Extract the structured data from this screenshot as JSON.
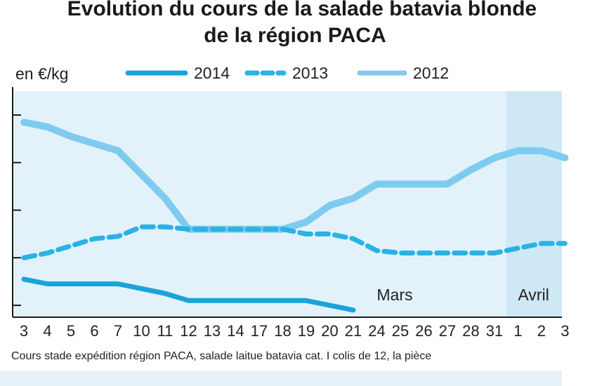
{
  "chart_data": {
    "type": "line",
    "title": "Evolution du cours de la salade batavia blonde",
    "subtitle": "de la région PACA",
    "ylabel": "en €/kg",
    "xlabel": "",
    "categories": [
      "3",
      "4",
      "5",
      "6",
      "7",
      "10",
      "11",
      "12",
      "13",
      "14",
      "17",
      "18",
      "19",
      "20",
      "21",
      "24",
      "25",
      "26",
      "27",
      "28",
      "31",
      "1",
      "2",
      "3"
    ],
    "months": [
      {
        "label": "Mars",
        "index": 15
      },
      {
        "label": "Avril",
        "index": 21
      }
    ],
    "ylim": [
      0.35,
      1.3
    ],
    "grid": false,
    "legend_position": "top",
    "series": [
      {
        "name": "2014",
        "style": "solid",
        "color": "#1aa3dc",
        "values": [
          0.51,
          0.49,
          0.49,
          0.49,
          0.49,
          0.47,
          0.45,
          0.42,
          0.42,
          0.42,
          0.42,
          0.42,
          0.42,
          0.4,
          0.38,
          null,
          null,
          null,
          null,
          null,
          null,
          null,
          null,
          null
        ]
      },
      {
        "name": "2013",
        "style": "dashed",
        "color": "#2ab2e6",
        "values": [
          0.6,
          0.62,
          0.65,
          0.68,
          0.69,
          0.73,
          0.73,
          0.72,
          0.72,
          0.72,
          0.72,
          0.72,
          0.7,
          0.7,
          0.68,
          0.63,
          0.62,
          0.62,
          0.62,
          0.62,
          0.62,
          0.64,
          0.66,
          0.66
        ]
      },
      {
        "name": "2012",
        "style": "solid",
        "color": "#7ecbef",
        "values": [
          1.17,
          1.15,
          1.11,
          1.08,
          1.05,
          0.95,
          0.85,
          0.72,
          0.72,
          0.72,
          0.72,
          0.72,
          0.75,
          0.82,
          0.85,
          0.91,
          0.91,
          0.91,
          0.91,
          0.97,
          1.02,
          1.05,
          1.05,
          1.02
        ]
      }
    ]
  },
  "source_note": "Cours stade expédition région PACA, salade laitue batavia cat. I colis de 12, la pièce",
  "colors": {
    "plot_background": "#e3f2fa",
    "april_band": "#cfe8f6",
    "axis": "#1a1a1a",
    "text": "#222222"
  }
}
